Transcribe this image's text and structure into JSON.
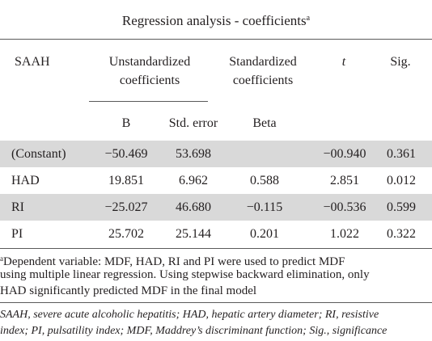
{
  "table": {
    "title": "Regression analysis - coefficients",
    "title_marker": "a",
    "headers": {
      "col0": "SAAH",
      "unstd_line1": "Unstandardized",
      "unstd_line2": "coefficients",
      "std_line1": "Standardized",
      "std_line2": "coefficients",
      "t": "t",
      "sig": "Sig.",
      "b": "B",
      "std_error": "Std. error",
      "beta": "Beta"
    },
    "rows": [
      {
        "label": "(Constant)",
        "b": "−50.469",
        "se": "53.698",
        "beta": "",
        "t": "−00.940",
        "sig": "0.361"
      },
      {
        "label": "HAD",
        "b": "19.851",
        "se": "6.962",
        "beta": "0.588",
        "t": "2.851",
        "sig": "0.012"
      },
      {
        "label": "RI",
        "b": "−25.027",
        "se": "46.680",
        "beta": "−0.115",
        "t": "−00.536",
        "sig": "0.599"
      },
      {
        "label": "PI",
        "b": "25.702",
        "se": "25.144",
        "beta": "0.201",
        "t": "1.022",
        "sig": "0.322"
      }
    ],
    "footnote_marker": "a",
    "footnote_line1": "Dependent variable: MDF, HAD, RI and PI were used to predict MDF",
    "footnote_line2": "using multiple linear regression. Using stepwise backward elimination, only",
    "footnote_line3": "HAD significantly predicted MDF in the final model",
    "abbrev_line1": "SAAH, severe acute alcoholic hepatitis; HAD, hepatic artery diameter; RI, resistive",
    "abbrev_line2": "index; PI, pulsatility index; MDF, Maddrey’s discriminant function; Sig., significance"
  },
  "colors": {
    "shaded_row": "#d9d9d9",
    "rule": "#5a5a5a",
    "text": "#231f20"
  }
}
